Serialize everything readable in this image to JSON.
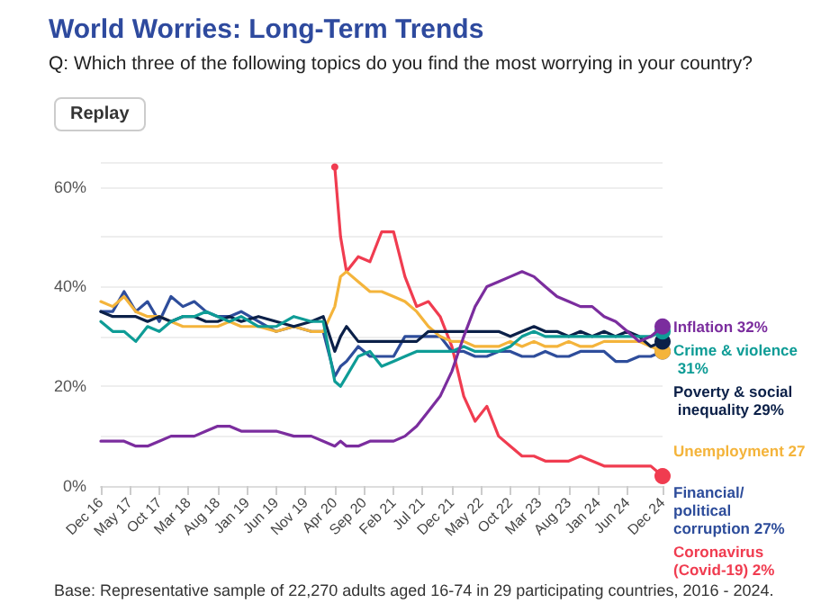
{
  "chart_data": {
    "type": "line",
    "title": "World Worries: Long-Term Trends",
    "subtitle": "Q: Which three of the following topics do you find the most worrying in your country?",
    "annotations": [
      "Replay",
      "Base: Representative sample of 22,270 adults aged 16-74 in 29 participating countries, 2016 - 2024."
    ],
    "x": [
      "2016-12",
      "2017-02",
      "2017-04",
      "2017-06",
      "2017-08",
      "2017-10",
      "2017-12",
      "2018-02",
      "2018-04",
      "2018-06",
      "2018-08",
      "2018-10",
      "2018-12",
      "2019-03",
      "2019-06",
      "2019-09",
      "2019-12",
      "2020-02",
      "2020-04",
      "2020-05",
      "2020-06",
      "2020-08",
      "2020-10",
      "2020-12",
      "2021-02",
      "2021-04",
      "2021-06",
      "2021-08",
      "2021-10",
      "2021-12",
      "2022-02",
      "2022-04",
      "2022-06",
      "2022-08",
      "2022-10",
      "2022-12",
      "2023-02",
      "2023-04",
      "2023-06",
      "2023-08",
      "2023-10",
      "2023-12",
      "2024-02",
      "2024-04",
      "2024-06",
      "2024-08",
      "2024-10",
      "2024-12"
    ],
    "series": [
      {
        "name": "Inflation 32%",
        "color": "#7b2d9e",
        "values": [
          9,
          9,
          9,
          8,
          8,
          9,
          10,
          10,
          10,
          11,
          12,
          12,
          11,
          11,
          11,
          10,
          10,
          9,
          8,
          9,
          8,
          8,
          9,
          9,
          9,
          10,
          12,
          15,
          18,
          23,
          30,
          36,
          40,
          41,
          42,
          43,
          42,
          40,
          38,
          37,
          36,
          36,
          34,
          33,
          31,
          29,
          30,
          32
        ]
      },
      {
        "name": "Crime & violence 31%",
        "color": "#0e9c96",
        "values": [
          33,
          31,
          31,
          29,
          32,
          31,
          33,
          34,
          34,
          35,
          34,
          33,
          34,
          32,
          32,
          34,
          33,
          33,
          21,
          20,
          22,
          26,
          27,
          24,
          25,
          26,
          27,
          27,
          27,
          27,
          28,
          27,
          27,
          27,
          28,
          30,
          31,
          30,
          30,
          30,
          30,
          30,
          30,
          30,
          30,
          30,
          30,
          31
        ]
      },
      {
        "name": "Poverty & social inequality 29%",
        "color": "#0b2048",
        "values": [
          35,
          34,
          34,
          34,
          33,
          34,
          33,
          34,
          34,
          33,
          33,
          34,
          33,
          34,
          33,
          32,
          33,
          34,
          27,
          30,
          32,
          29,
          29,
          29,
          29,
          29,
          29,
          31,
          31,
          31,
          31,
          31,
          31,
          31,
          30,
          31,
          32,
          31,
          31,
          30,
          31,
          30,
          31,
          30,
          31,
          30,
          28,
          29
        ]
      },
      {
        "name": "Unemployment 27",
        "color": "#f4b43b",
        "values": [
          37,
          36,
          38,
          35,
          34,
          34,
          33,
          32,
          32,
          32,
          32,
          33,
          32,
          32,
          31,
          32,
          31,
          31,
          36,
          42,
          43,
          41,
          39,
          39,
          38,
          37,
          35,
          32,
          30,
          29,
          29,
          28,
          28,
          28,
          29,
          28,
          29,
          28,
          28,
          29,
          28,
          28,
          29,
          29,
          29,
          29,
          28,
          27
        ]
      },
      {
        "name": "Financial/political corruption 27%",
        "color": "#2e4d9b",
        "values": [
          35,
          35,
          39,
          35,
          37,
          33,
          38,
          36,
          37,
          35,
          34,
          34,
          35,
          33,
          31,
          32,
          31,
          31,
          22,
          24,
          25,
          28,
          26,
          26,
          26,
          30,
          30,
          30,
          30,
          27,
          27,
          26,
          26,
          27,
          27,
          26,
          26,
          27,
          26,
          26,
          27,
          27,
          27,
          25,
          25,
          26,
          26,
          27
        ]
      },
      {
        "name": "Coronavirus (Covid-19) 2%",
        "color": "#f03c50",
        "values": [
          null,
          null,
          null,
          null,
          null,
          null,
          null,
          null,
          null,
          null,
          null,
          null,
          null,
          null,
          null,
          null,
          null,
          null,
          64,
          50,
          43,
          46,
          45,
          51,
          51,
          42,
          36,
          37,
          34,
          28,
          18,
          13,
          16,
          10,
          8,
          6,
          6,
          5,
          5,
          5,
          6,
          5,
          4,
          4,
          4,
          4,
          4,
          2
        ]
      }
    ],
    "xlim": [
      "2016-12",
      "2024-12"
    ],
    "xticks": [
      {
        "value": "2016-12",
        "label": "Dec 16"
      },
      {
        "value": "2017-05",
        "label": "May 17"
      },
      {
        "value": "2017-10",
        "label": "Oct 17"
      },
      {
        "value": "2018-03",
        "label": "Mar 18"
      },
      {
        "value": "2018-08",
        "label": "Aug 18"
      },
      {
        "value": "2019-01",
        "label": "Jan 19"
      },
      {
        "value": "2019-06",
        "label": "Jun 19"
      },
      {
        "value": "2019-11",
        "label": "Nov 19"
      },
      {
        "value": "2020-04",
        "label": "Apr 20"
      },
      {
        "value": "2020-09",
        "label": "Sep 20"
      },
      {
        "value": "2021-02",
        "label": "Feb 21"
      },
      {
        "value": "2021-07",
        "label": "Jul 21"
      },
      {
        "value": "2021-12",
        "label": "Dec 21"
      },
      {
        "value": "2022-05",
        "label": "May 22"
      },
      {
        "value": "2022-10",
        "label": "Oct 22"
      },
      {
        "value": "2023-03",
        "label": "Mar 23"
      },
      {
        "value": "2023-08",
        "label": "Aug 23"
      },
      {
        "value": "2024-01",
        "label": "Jan 24"
      },
      {
        "value": "2024-06",
        "label": "Jun 24"
      },
      {
        "value": "2024-12",
        "label": "Dec 24"
      }
    ],
    "ylim": [
      0,
      65
    ],
    "yticks": [
      {
        "value": 0,
        "label": "0%"
      },
      {
        "value": 20,
        "label": "20%"
      },
      {
        "value": 40,
        "label": "40%"
      },
      {
        "value": 60,
        "label": "60%"
      }
    ],
    "grid": "y",
    "legend": false,
    "line_style": "solid"
  }
}
